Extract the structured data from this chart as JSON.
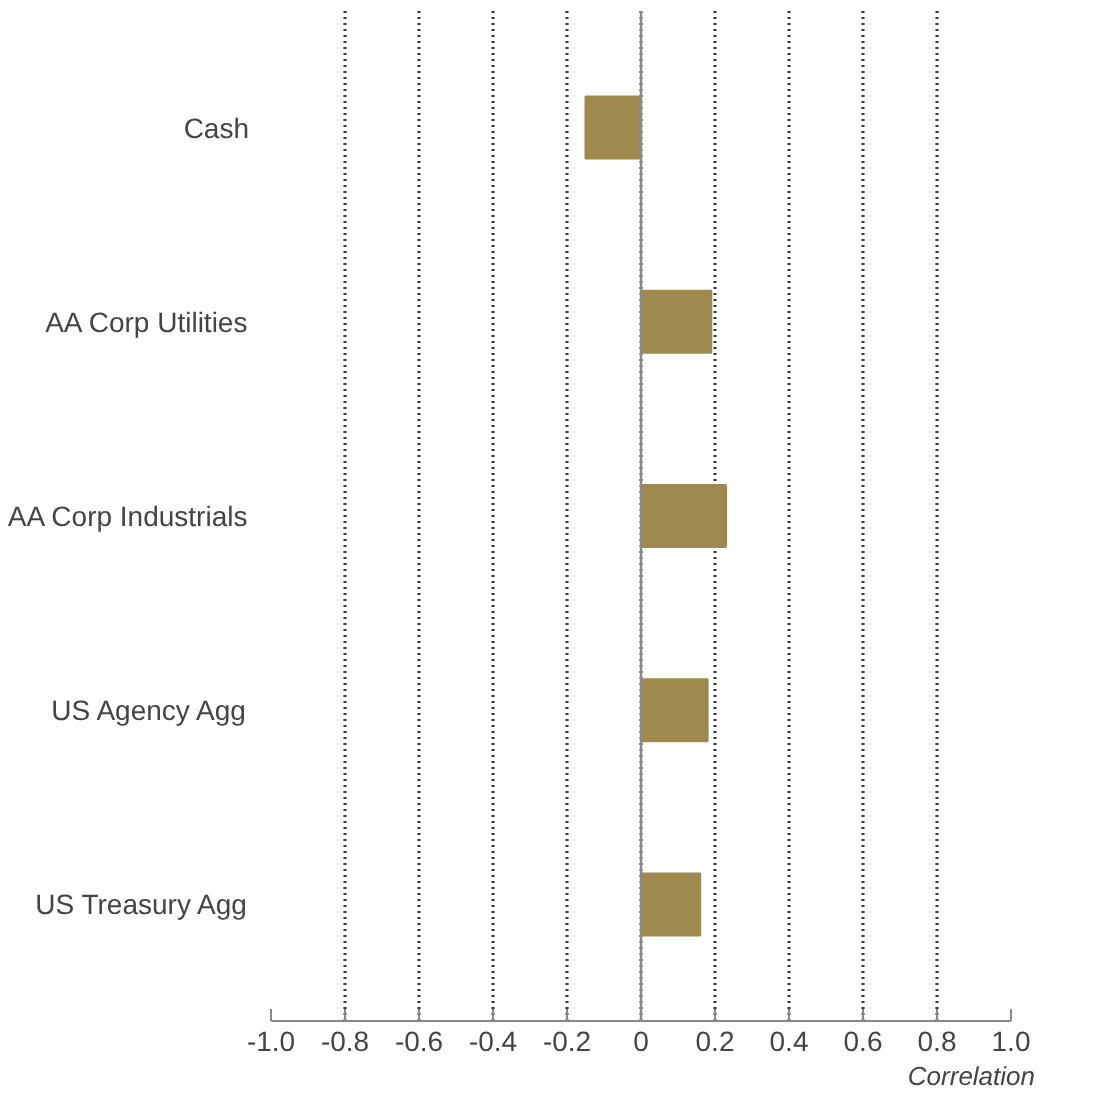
{
  "chart_data": {
    "type": "bar",
    "orientation": "horizontal",
    "categories": [
      "Cash",
      "AA Corp Utilities",
      "AA Corp Industrials",
      "US Agency Agg",
      "US Treasury Agg"
    ],
    "values": [
      -0.15,
      0.19,
      0.23,
      0.18,
      0.16
    ],
    "color": "#9e8a4e",
    "xlim": [
      -1.0,
      1.0
    ],
    "xticks": [
      {
        "value": -1.0,
        "label": "-1.0"
      },
      {
        "value": -0.8,
        "label": "-0.8"
      },
      {
        "value": -0.6,
        "label": "-0.6"
      },
      {
        "value": -0.4,
        "label": "-0.4"
      },
      {
        "value": -0.2,
        "label": "-0.2"
      },
      0,
      {
        "value": 0.2,
        "label": "0.2"
      },
      {
        "value": 0.4,
        "label": "0.4"
      },
      {
        "value": 0.6,
        "label": "0.6"
      },
      {
        "value": 0.8,
        "label": "0.8"
      },
      {
        "value": 1.0,
        "label": "1.0"
      }
    ],
    "xlabel": "Correlation",
    "grid": "x",
    "ref_lines": [
      {
        "axis": "x",
        "value": 0,
        "label": null,
        "color": "#888888",
        "line_style": "solid"
      }
    ]
  }
}
